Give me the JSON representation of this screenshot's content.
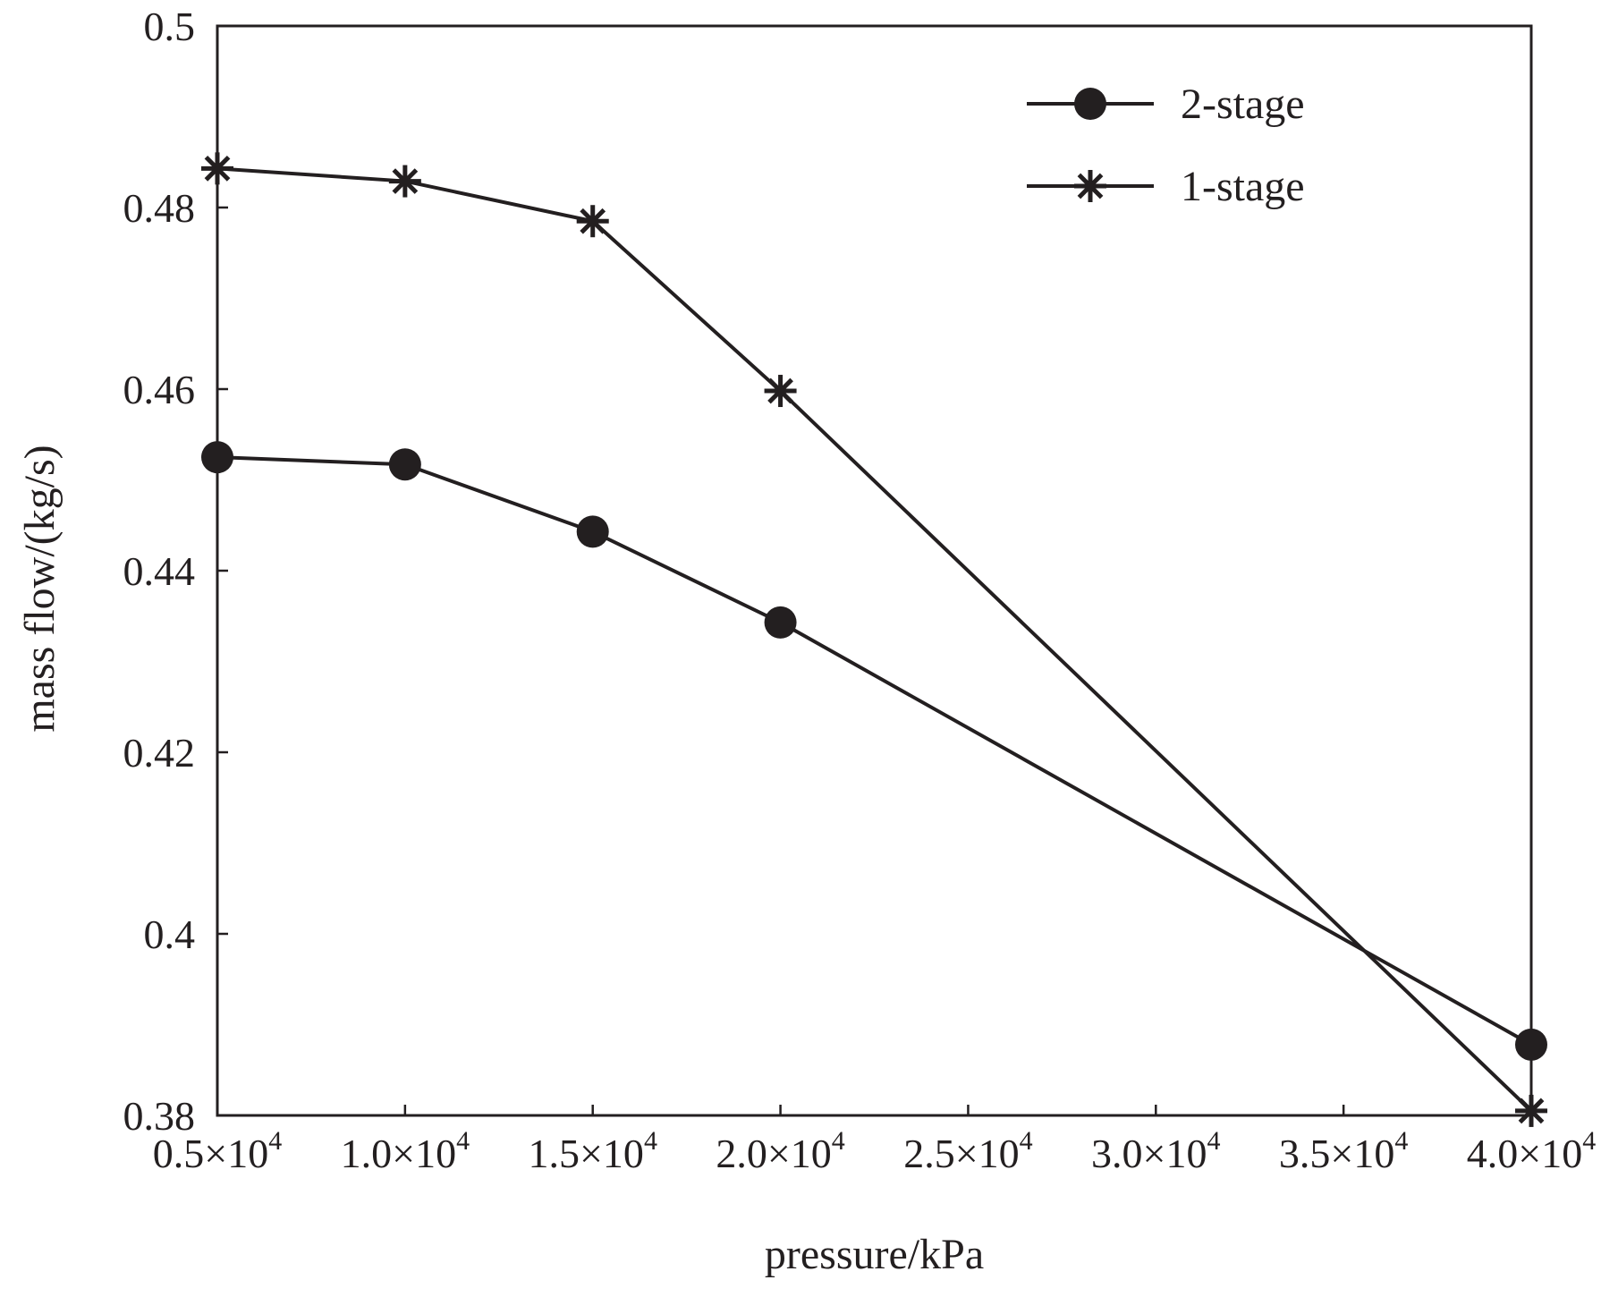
{
  "chart_data": {
    "type": "line",
    "title": "",
    "xlabel": "pressure/kPa",
    "ylabel": "mass flow/(kg/s)",
    "xlim": [
      5000,
      40000
    ],
    "ylim": [
      0.38,
      0.5
    ],
    "x_ticks": [
      {
        "value": 5000,
        "mantissa": "0.5×10",
        "exponent": "4"
      },
      {
        "value": 10000,
        "mantissa": "1.0×10",
        "exponent": "4"
      },
      {
        "value": 15000,
        "mantissa": "1.5×10",
        "exponent": "4"
      },
      {
        "value": 20000,
        "mantissa": "2.0×10",
        "exponent": "4"
      },
      {
        "value": 25000,
        "mantissa": "2.5×10",
        "exponent": "4"
      },
      {
        "value": 30000,
        "mantissa": "3.0×10",
        "exponent": "4"
      },
      {
        "value": 35000,
        "mantissa": "3.5×10",
        "exponent": "4"
      },
      {
        "value": 40000,
        "mantissa": "4.0×10",
        "exponent": "4"
      }
    ],
    "y_ticks": [
      {
        "value": 0.38,
        "label": "0.38"
      },
      {
        "value": 0.4,
        "label": "0.4"
      },
      {
        "value": 0.42,
        "label": "0.42"
      },
      {
        "value": 0.44,
        "label": "0.44"
      },
      {
        "value": 0.46,
        "label": "0.46"
      },
      {
        "value": 0.48,
        "label": "0.48"
      },
      {
        "value": 0.5,
        "label": "0.5"
      }
    ],
    "legend_position": "top-right",
    "grid": false,
    "series": [
      {
        "name": "2-stage",
        "marker": "circle",
        "x": [
          5000,
          10000,
          15000,
          20000,
          40000
        ],
        "y": [
          0.4525,
          0.4517,
          0.4443,
          0.4343,
          0.3878
        ]
      },
      {
        "name": "1-stage",
        "marker": "asterisk",
        "x": [
          5000,
          10000,
          15000,
          20000,
          40000
        ],
        "y": [
          0.4843,
          0.4829,
          0.4785,
          0.4598,
          0.3805
        ]
      }
    ]
  },
  "colors": {
    "line": "#231f20",
    "background": "#ffffff"
  }
}
